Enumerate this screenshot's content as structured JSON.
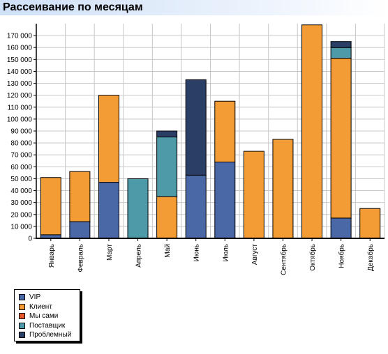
{
  "title": "Рассеивание по месяцам",
  "chart_data": {
    "type": "bar",
    "stacked": true,
    "categories": [
      "Январь",
      "Февраль",
      "Март",
      "Апрель",
      "Май",
      "Июнь",
      "Июль",
      "Август",
      "Сентябрь",
      "Октябрь",
      "Ноябрь",
      "Декабрь"
    ],
    "ylim": [
      0,
      180000
    ],
    "ytick_labels": [
      "0",
      "10 000",
      "20 000",
      "30 000",
      "40 000",
      "50 000",
      "60 000",
      "70 000",
      "80 000",
      "90 000",
      "100 000",
      "110 000",
      "120 000",
      "130 000",
      "140 000",
      "150 000",
      "160 000",
      "170 000"
    ],
    "grid": true,
    "legend_position": "bottom-left",
    "series": [
      {
        "name": "VIP",
        "color": "#4a67a6",
        "values": [
          3000,
          14000,
          47000,
          0,
          0,
          53000,
          64000,
          0,
          0,
          0,
          17000,
          0
        ]
      },
      {
        "name": "Клиент",
        "color": "#f39c35",
        "values": [
          48000,
          42000,
          73000,
          0,
          35000,
          0,
          51000,
          73000,
          83000,
          179000,
          134000,
          25000
        ]
      },
      {
        "name": "Мы сами",
        "color": "#e8562b",
        "values": [
          0,
          0,
          0,
          0,
          0,
          0,
          0,
          0,
          0,
          0,
          0,
          0
        ]
      },
      {
        "name": "Поставщик",
        "color": "#4f9aa9",
        "values": [
          0,
          0,
          0,
          50000,
          50000,
          0,
          0,
          0,
          0,
          0,
          9000,
          0
        ]
      },
      {
        "name": "Проблемный",
        "color": "#2b3e66",
        "values": [
          0,
          0,
          0,
          0,
          5000,
          80000,
          0,
          0,
          0,
          0,
          5000,
          0
        ]
      }
    ]
  }
}
